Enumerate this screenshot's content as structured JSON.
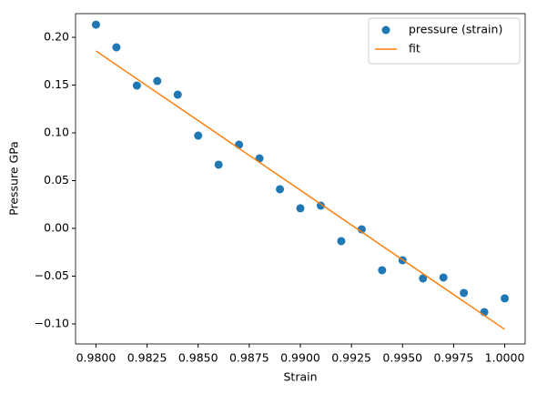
{
  "chart_data": {
    "type": "scatter",
    "xlabel": "Strain",
    "ylabel": "Pressure GPa",
    "x": [
      0.98,
      0.981,
      0.982,
      0.983,
      0.984,
      0.985,
      0.986,
      0.987,
      0.988,
      0.989,
      0.99,
      0.991,
      0.992,
      0.993,
      0.994,
      0.995,
      0.996,
      0.997,
      0.998,
      0.999,
      1.0
    ],
    "series": [
      {
        "name": "pressure (strain)",
        "type": "scatter",
        "color": "#1f77b4",
        "values": [
          0.2133,
          0.1895,
          0.1495,
          0.1543,
          0.14,
          0.0971,
          0.0667,
          0.0876,
          0.0733,
          0.041,
          0.021,
          0.0238,
          -0.0133,
          -0.001,
          -0.0438,
          -0.0333,
          -0.0524,
          -0.0514,
          -0.0676,
          -0.0876,
          -0.0733
        ]
      },
      {
        "name": "fit",
        "type": "line",
        "color": "#ff7f0e",
        "x": [
          0.98,
          1.0
        ],
        "values": [
          0.1857,
          -0.1057
        ]
      }
    ],
    "xlim": [
      0.979,
      1.001
    ],
    "ylim": [
      -0.121,
      0.2248
    ],
    "xticks": [
      {
        "value": 0.98,
        "label": "0.9800"
      },
      {
        "value": 0.9825,
        "label": "0.9825"
      },
      {
        "value": 0.985,
        "label": "0.9850"
      },
      {
        "value": 0.9875,
        "label": "0.9875"
      },
      {
        "value": 0.99,
        "label": "0.9900"
      },
      {
        "value": 0.9925,
        "label": "0.9925"
      },
      {
        "value": 0.995,
        "label": "0.9950"
      },
      {
        "value": 0.9975,
        "label": "0.9975"
      },
      {
        "value": 1.0,
        "label": "1.0000"
      }
    ],
    "yticks": [
      {
        "value": -0.1,
        "label": "−0.10"
      },
      {
        "value": -0.05,
        "label": "−0.05"
      },
      {
        "value": 0,
        "label": "0.00"
      },
      {
        "value": 0.05,
        "label": "0.05"
      },
      {
        "value": 0.1,
        "label": "0.10"
      },
      {
        "value": 0.15,
        "label": "0.15"
      },
      {
        "value": 0.2,
        "label": "0.20"
      }
    ],
    "legend": "upper right"
  }
}
